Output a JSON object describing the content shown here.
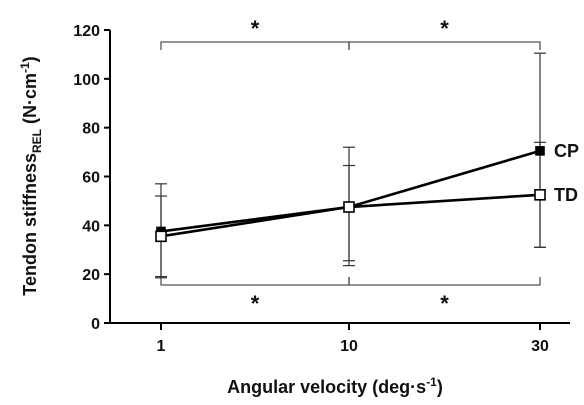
{
  "chart_data": {
    "type": "line",
    "xlabel": "Angular velocity (deg·s",
    "xlabel_sup": "-1",
    "xlabel_end": ")",
    "ylabel_main": "Tendon stiffness",
    "ylabel_sub": "REL",
    "ylabel_unit": " (N·cm",
    "ylabel_sup": "-1",
    "ylabel_end": ")",
    "categories": [
      "1",
      "10",
      "30"
    ],
    "ylim": [
      0,
      120
    ],
    "yticks": [
      "0",
      "20",
      "40",
      "60",
      "80",
      "100",
      "120"
    ],
    "grid": false,
    "series": [
      {
        "name": "CP",
        "marker": "filled-square",
        "values": [
          37.5,
          47.5,
          70.5
        ],
        "err_low": [
          19,
          23.5,
          31
        ],
        "err_high": [
          52,
          64.5,
          110.5
        ]
      },
      {
        "name": "TD",
        "marker": "open-square",
        "values": [
          35.5,
          47.5,
          52.5
        ],
        "err_low": [
          18.5,
          25.5,
          31
        ],
        "err_high": [
          57,
          72,
          74
        ]
      }
    ],
    "significance": [
      {
        "from": "1",
        "to": "10",
        "position": "top",
        "label": "*"
      },
      {
        "from": "10",
        "to": "30",
        "position": "top",
        "label": "*"
      },
      {
        "from": "1",
        "to": "10",
        "position": "bottom",
        "label": "*"
      },
      {
        "from": "10",
        "to": "30",
        "position": "bottom",
        "label": "*"
      }
    ]
  }
}
